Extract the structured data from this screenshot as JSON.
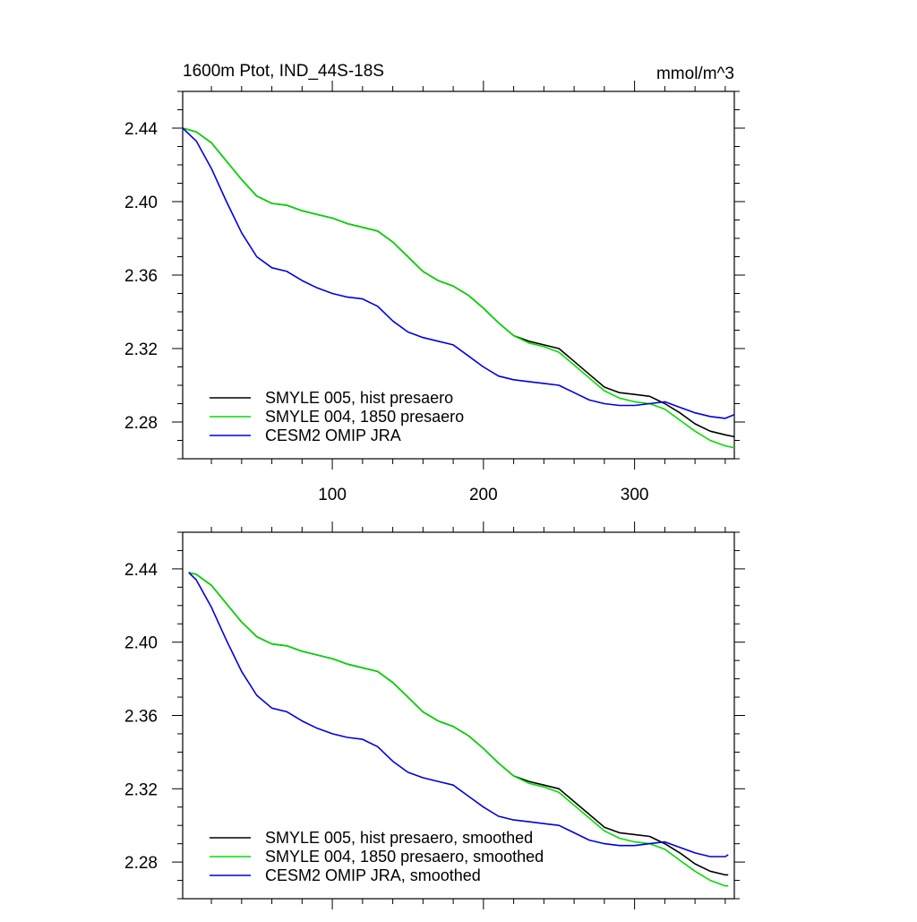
{
  "chart_data": [
    {
      "type": "line",
      "title": "1600m Ptot, IND_44S-18S",
      "units": "mmol/m^3",
      "xlabel": "",
      "ylabel": "",
      "xlim": [
        1,
        366
      ],
      "ylim": [
        2.26,
        2.46
      ],
      "xticks": [
        100,
        200,
        300
      ],
      "xtick_labels": [
        "100",
        "200",
        "300"
      ],
      "yticks": [
        2.28,
        2.32,
        2.36,
        2.4,
        2.44
      ],
      "ytick_labels": [
        "2.28",
        "2.32",
        "2.36",
        "2.40",
        "2.44"
      ],
      "grid": false,
      "legend_position": "bottom-left",
      "series": [
        {
          "name": "SMYLE 005, hist presaero",
          "color": "#000000",
          "x": [
            1,
            10,
            20,
            30,
            40,
            50,
            60,
            70,
            80,
            90,
            100,
            110,
            120,
            130,
            140,
            150,
            160,
            170,
            180,
            190,
            200,
            210,
            220,
            230,
            240,
            250,
            260,
            270,
            280,
            290,
            300,
            310,
            320,
            330,
            340,
            350,
            360,
            366
          ],
          "values": [
            2.44,
            2.438,
            2.432,
            2.422,
            2.412,
            2.403,
            2.399,
            2.398,
            2.395,
            2.393,
            2.391,
            2.388,
            2.386,
            2.384,
            2.378,
            2.37,
            2.362,
            2.357,
            2.354,
            2.349,
            2.342,
            2.334,
            2.327,
            2.324,
            2.322,
            2.32,
            2.313,
            2.306,
            2.299,
            2.296,
            2.295,
            2.294,
            2.29,
            2.285,
            2.279,
            2.275,
            2.273,
            2.272
          ]
        },
        {
          "name": "SMYLE 004, 1850 presaero",
          "color": "#00dd00",
          "x": [
            1,
            10,
            20,
            30,
            40,
            50,
            60,
            70,
            80,
            90,
            100,
            110,
            120,
            130,
            140,
            150,
            160,
            170,
            180,
            190,
            200,
            210,
            220,
            230,
            240,
            250,
            260,
            270,
            280,
            290,
            300,
            310,
            320,
            330,
            340,
            350,
            360,
            366
          ],
          "values": [
            2.44,
            2.438,
            2.432,
            2.422,
            2.412,
            2.403,
            2.399,
            2.398,
            2.395,
            2.393,
            2.391,
            2.388,
            2.386,
            2.384,
            2.378,
            2.37,
            2.362,
            2.357,
            2.354,
            2.349,
            2.342,
            2.334,
            2.327,
            2.323,
            2.321,
            2.318,
            2.311,
            2.304,
            2.297,
            2.293,
            2.291,
            2.29,
            2.287,
            2.281,
            2.275,
            2.27,
            2.267,
            2.266
          ]
        },
        {
          "name": "CESM2 OMIP JRA",
          "color": "#0000dd",
          "x": [
            1,
            10,
            20,
            30,
            40,
            50,
            60,
            70,
            80,
            90,
            100,
            110,
            120,
            130,
            140,
            150,
            160,
            170,
            180,
            190,
            200,
            210,
            220,
            230,
            240,
            250,
            260,
            270,
            280,
            290,
            300,
            310,
            320,
            330,
            340,
            350,
            360,
            366
          ],
          "values": [
            2.44,
            2.433,
            2.418,
            2.4,
            2.383,
            2.37,
            2.364,
            2.362,
            2.357,
            2.353,
            2.35,
            2.348,
            2.347,
            2.343,
            2.335,
            2.329,
            2.326,
            2.324,
            2.322,
            2.316,
            2.31,
            2.305,
            2.303,
            2.302,
            2.301,
            2.3,
            2.296,
            2.292,
            2.29,
            2.289,
            2.289,
            2.29,
            2.291,
            2.288,
            2.285,
            2.283,
            2.282,
            2.284
          ]
        }
      ]
    },
    {
      "type": "line",
      "title": "",
      "xlabel": "",
      "ylabel": "",
      "xlim": [
        1,
        366
      ],
      "ylim": [
        2.26,
        2.46
      ],
      "xticks": [
        100,
        200,
        300
      ],
      "xtick_labels": [],
      "yticks": [
        2.28,
        2.32,
        2.36,
        2.4,
        2.44
      ],
      "ytick_labels": [
        "2.28",
        "2.32",
        "2.36",
        "2.40",
        "2.44"
      ],
      "grid": false,
      "legend_position": "bottom-left",
      "series": [
        {
          "name": "SMYLE 005, hist presaero, smoothed",
          "color": "#000000",
          "x": [
            5,
            10,
            20,
            30,
            40,
            50,
            60,
            70,
            80,
            90,
            100,
            110,
            120,
            130,
            140,
            150,
            160,
            170,
            180,
            190,
            200,
            210,
            220,
            230,
            240,
            250,
            260,
            270,
            280,
            290,
            300,
            310,
            320,
            330,
            340,
            350,
            360,
            362
          ],
          "values": [
            2.438,
            2.437,
            2.431,
            2.421,
            2.411,
            2.403,
            2.399,
            2.398,
            2.395,
            2.393,
            2.391,
            2.388,
            2.386,
            2.384,
            2.378,
            2.37,
            2.362,
            2.357,
            2.354,
            2.349,
            2.342,
            2.334,
            2.327,
            2.324,
            2.322,
            2.32,
            2.313,
            2.306,
            2.299,
            2.296,
            2.295,
            2.294,
            2.29,
            2.285,
            2.279,
            2.275,
            2.273,
            2.273
          ]
        },
        {
          "name": "SMYLE 004, 1850 presaero, smoothed",
          "color": "#00dd00",
          "x": [
            5,
            10,
            20,
            30,
            40,
            50,
            60,
            70,
            80,
            90,
            100,
            110,
            120,
            130,
            140,
            150,
            160,
            170,
            180,
            190,
            200,
            210,
            220,
            230,
            240,
            250,
            260,
            270,
            280,
            290,
            300,
            310,
            320,
            330,
            340,
            350,
            360,
            362
          ],
          "values": [
            2.438,
            2.437,
            2.431,
            2.421,
            2.411,
            2.403,
            2.399,
            2.398,
            2.395,
            2.393,
            2.391,
            2.388,
            2.386,
            2.384,
            2.378,
            2.37,
            2.362,
            2.357,
            2.354,
            2.349,
            2.342,
            2.334,
            2.327,
            2.323,
            2.321,
            2.318,
            2.311,
            2.304,
            2.297,
            2.293,
            2.291,
            2.29,
            2.287,
            2.281,
            2.275,
            2.27,
            2.267,
            2.267
          ]
        },
        {
          "name": "CESM2 OMIP JRA, smoothed",
          "color": "#0000dd",
          "x": [
            5,
            10,
            20,
            30,
            40,
            50,
            60,
            70,
            80,
            90,
            100,
            110,
            120,
            130,
            140,
            150,
            160,
            170,
            180,
            190,
            200,
            210,
            220,
            230,
            240,
            250,
            260,
            270,
            280,
            290,
            300,
            310,
            320,
            330,
            340,
            350,
            360,
            362
          ],
          "values": [
            2.438,
            2.434,
            2.419,
            2.401,
            2.384,
            2.371,
            2.364,
            2.362,
            2.357,
            2.353,
            2.35,
            2.348,
            2.347,
            2.343,
            2.335,
            2.329,
            2.326,
            2.324,
            2.322,
            2.316,
            2.31,
            2.305,
            2.303,
            2.302,
            2.301,
            2.3,
            2.296,
            2.292,
            2.29,
            2.289,
            2.289,
            2.29,
            2.291,
            2.288,
            2.285,
            2.283,
            2.283,
            2.284
          ]
        }
      ]
    }
  ]
}
